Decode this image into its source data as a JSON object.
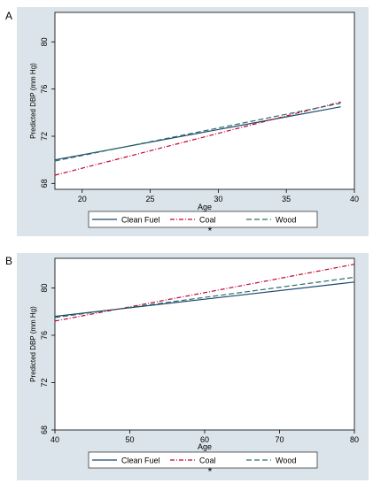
{
  "colors": {
    "panel_bg": "#dae4ea",
    "plot_bg": "#ffffff",
    "clean_fuel": "#1a476f",
    "coal": "#c10534",
    "wood": "#2d6d66"
  },
  "chart_data": [
    {
      "type": "line",
      "panel_label": "A",
      "xlabel": "Age",
      "ylabel": "Predicted DBP (mm Hg)",
      "xlim": [
        18,
        40
      ],
      "ylim": [
        67.5,
        82.5
      ],
      "xticks": [
        20,
        25,
        30,
        35,
        40
      ],
      "yticks": [
        68,
        72,
        76,
        80
      ],
      "grid": false,
      "legend_position": "bottom",
      "footnote": "*",
      "series": [
        {
          "name": "Clean Fuel",
          "key": "clean_fuel",
          "dash": "solid",
          "x": [
            18,
            39
          ],
          "y": [
            70.0,
            74.5
          ]
        },
        {
          "name": "Coal",
          "key": "coal",
          "dash": "dashdot",
          "x": [
            18,
            39
          ],
          "y": [
            68.7,
            74.9
          ]
        },
        {
          "name": "Wood",
          "key": "wood",
          "dash": "dash",
          "x": [
            18,
            39
          ],
          "y": [
            69.9,
            74.8
          ]
        }
      ]
    },
    {
      "type": "line",
      "panel_label": "B",
      "xlabel": "Age",
      "ylabel": "Predicted DBP (mm Hg)",
      "xlim": [
        40,
        80
      ],
      "ylim": [
        68,
        82.5
      ],
      "xticks": [
        40,
        50,
        60,
        70,
        80
      ],
      "yticks": [
        68,
        72,
        76,
        80
      ],
      "grid": false,
      "legend_position": "bottom",
      "footnote": "*",
      "series": [
        {
          "name": "Clean Fuel",
          "key": "clean_fuel",
          "dash": "solid",
          "x": [
            40,
            80
          ],
          "y": [
            77.6,
            80.5
          ]
        },
        {
          "name": "Coal",
          "key": "coal",
          "dash": "dashdot",
          "x": [
            40,
            80
          ],
          "y": [
            77.2,
            82.0
          ]
        },
        {
          "name": "Wood",
          "key": "wood",
          "dash": "dash",
          "x": [
            40,
            80
          ],
          "y": [
            77.5,
            80.9
          ]
        }
      ]
    }
  ]
}
